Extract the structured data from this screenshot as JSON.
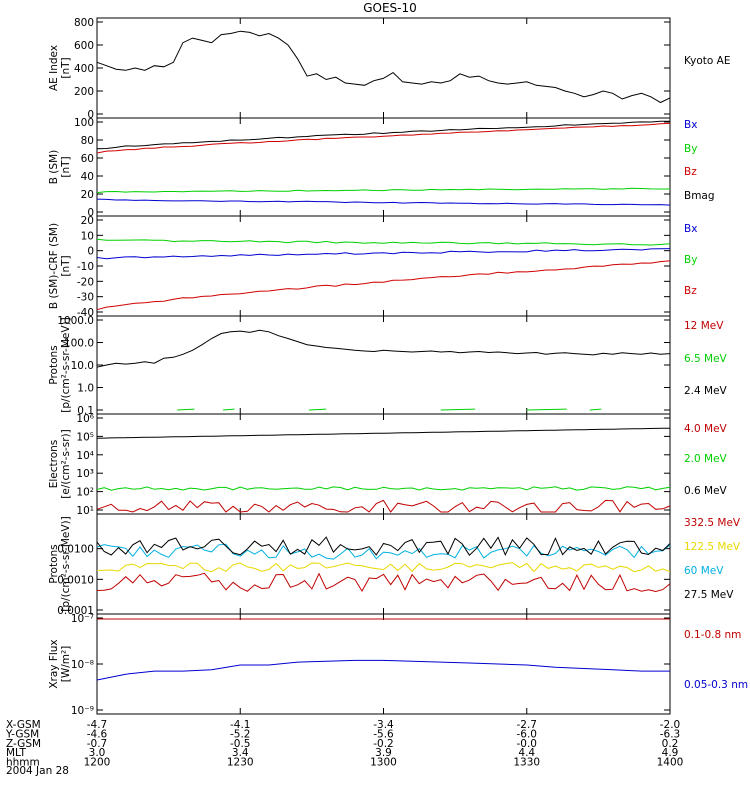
{
  "title": "GOES-10",
  "date_label": "2004 Jan 28",
  "chart_data": [
    {
      "type": "line",
      "ylabel_lines": [
        "AE Index",
        "[nT]"
      ],
      "ylim": [
        0,
        800
      ],
      "yticks": [
        {
          "label": "800",
          "v": 800
        },
        {
          "label": "600",
          "v": 600
        },
        {
          "label": "400",
          "v": 400
        },
        {
          "label": "200",
          "v": 200
        },
        {
          "label": "0",
          "v": 0
        }
      ],
      "series": [
        {
          "name": "Kyoto AE",
          "color": "#000000",
          "values": [
            450,
            420,
            390,
            380,
            400,
            380,
            420,
            410,
            450,
            620,
            660,
            640,
            620,
            690,
            700,
            720,
            710,
            680,
            700,
            660,
            600,
            480,
            330,
            350,
            300,
            320,
            270,
            260,
            250,
            290,
            310,
            360,
            280,
            270,
            260,
            280,
            270,
            290,
            350,
            320,
            330,
            290,
            270,
            260,
            270,
            280,
            250,
            240,
            230,
            200,
            180,
            150,
            170,
            200,
            180,
            130,
            160,
            180,
            150,
            100,
            140
          ]
        }
      ]
    },
    {
      "type": "line",
      "ylabel_lines": [
        "B (SM)",
        "[nT]"
      ],
      "ylim": [
        0,
        100
      ],
      "yticks": [
        {
          "label": "100",
          "v": 100
        },
        {
          "label": "80",
          "v": 80
        },
        {
          "label": "60",
          "v": 60
        },
        {
          "label": "40",
          "v": 40
        },
        {
          "label": "20",
          "v": 20
        },
        {
          "label": "0",
          "v": 0
        }
      ],
      "series": [
        {
          "name": "Bx",
          "color": "#0000d0",
          "start": 14,
          "end": 8
        },
        {
          "name": "By",
          "color": "#00d000",
          "start": 22,
          "end": 26
        },
        {
          "name": "Bz",
          "color": "#d00000",
          "start": 66,
          "end": 98
        },
        {
          "name": "Bmag",
          "color": "#000000",
          "start": 70,
          "end": 101
        }
      ]
    },
    {
      "type": "line",
      "ylabel_lines": [
        "B (SM)-CRF (SM)",
        "[nT]"
      ],
      "ylim": [
        -40,
        20
      ],
      "yticks": [
        {
          "label": "20",
          "v": 20
        },
        {
          "label": "10",
          "v": 10
        },
        {
          "label": "0",
          "v": 0
        },
        {
          "label": "-10",
          "v": -10
        },
        {
          "label": "-20",
          "v": -20
        },
        {
          "label": "-30",
          "v": -30
        },
        {
          "label": "-40",
          "v": -40
        }
      ],
      "series": [
        {
          "name": "Bx",
          "color": "#0000d0",
          "start": -5,
          "end": 1
        },
        {
          "name": "By",
          "color": "#00d000",
          "start": 7,
          "end": 4
        },
        {
          "name": "Bz",
          "color": "#d00000",
          "start": -38,
          "end": -7
        }
      ]
    },
    {
      "type": "line",
      "scale": "log",
      "ylabel_lines": [
        "Protons",
        "[p/(cm²-s-sr-MeV)]"
      ],
      "ylim": [
        0.1,
        1000
      ],
      "yticks": [
        {
          "label": "1000.0",
          "v": 1000
        },
        {
          "label": "100.0",
          "v": 100
        },
        {
          "label": "10.0",
          "v": 10
        },
        {
          "label": "1.0",
          "v": 1
        },
        {
          "label": "0.1",
          "v": 0.1
        }
      ],
      "series": [
        {
          "name": "12 MeV",
          "color": "#c00000"
        },
        {
          "name": "6.5 MeV",
          "color": "#00d000"
        },
        {
          "name": "2.4 MeV",
          "color": "#000000",
          "values": [
            8,
            10,
            12,
            11,
            12,
            14,
            12,
            20,
            22,
            30,
            45,
            80,
            150,
            250,
            300,
            320,
            280,
            350,
            300,
            200,
            150,
            110,
            80,
            70,
            60,
            55,
            50,
            45,
            42,
            40,
            45,
            42,
            40,
            38,
            40,
            42,
            38,
            40,
            35,
            38,
            40,
            36,
            38,
            35,
            32,
            34,
            36,
            30,
            33,
            35,
            32,
            30,
            28,
            33,
            30,
            35,
            32,
            30,
            34,
            30,
            32
          ]
        }
      ]
    },
    {
      "type": "line",
      "scale": "log",
      "ylabel_lines": [
        "Electrons",
        "[e/(cm²-s-sr)]"
      ],
      "ylim": [
        10,
        1000000
      ],
      "yticks": [
        {
          "label": "10⁶",
          "v": 1000000
        },
        {
          "label": "10⁵",
          "v": 100000
        },
        {
          "label": "10⁴",
          "v": 10000
        },
        {
          "label": "10³",
          "v": 1000
        },
        {
          "label": "10²",
          "v": 100
        },
        {
          "label": "10¹",
          "v": 10
        }
      ],
      "series": [
        {
          "name": "4.0 MeV",
          "color": "#c00000"
        },
        {
          "name": "2.0 MeV",
          "color": "#00d000"
        },
        {
          "name": "0.6 MeV",
          "color": "#000000"
        }
      ]
    },
    {
      "type": "line",
      "scale": "log",
      "ylabel_lines": [
        "Protons",
        "[p/(cm²-s-sr-MeV)]"
      ],
      "ylim": [
        0.0001,
        0.1
      ],
      "yticks": [
        {
          "label": "0.0100",
          "v": 0.01
        },
        {
          "label": "0.0010",
          "v": 0.001
        },
        {
          "label": "0.0001",
          "v": 0.0001
        }
      ],
      "series": [
        {
          "name": "332.5 MeV",
          "color": "#c00000"
        },
        {
          "name": "122.5 MeV",
          "color": "#e8d800"
        },
        {
          "name": "60 MeV",
          "color": "#00b0e0"
        },
        {
          "name": "27.5 MeV",
          "color": "#000000"
        }
      ]
    },
    {
      "type": "line",
      "scale": "log",
      "ylabel_lines": [
        "Xray  Flux",
        "[W/m²]"
      ],
      "ylim": [
        1e-09,
        1e-07
      ],
      "yticks": [
        {
          "label": "10⁻⁷",
          "v": 1e-07
        },
        {
          "label": "10⁻⁸",
          "v": 1e-08
        },
        {
          "label": "10⁻⁹",
          "v": 1e-09
        }
      ],
      "series": [
        {
          "name": "0.1-0.8 nm",
          "color": "#c00000"
        },
        {
          "name": "0.05-0.3 nm",
          "color": "#0000d0"
        }
      ]
    }
  ],
  "x_axis": {
    "rows": [
      {
        "label": "X-GSM",
        "values": [
          "-4.7",
          "-4.1",
          "-3.4",
          "-2.7",
          "-2.0"
        ]
      },
      {
        "label": "Y-GSM",
        "values": [
          "-4.6",
          "-5.2",
          "-5.6",
          "-6.0",
          "-6.3"
        ]
      },
      {
        "label": "Z-GSM",
        "values": [
          "-0.7",
          "-0.5",
          "-0.2",
          "-0.0",
          "0.2"
        ]
      },
      {
        "label": "MLT",
        "values": [
          "3.0",
          "3.4",
          "3.9",
          "4.4",
          "4.9"
        ]
      },
      {
        "label": "hhmm",
        "values": [
          "1200",
          "1230",
          "1300",
          "1330",
          "1400"
        ]
      }
    ]
  }
}
